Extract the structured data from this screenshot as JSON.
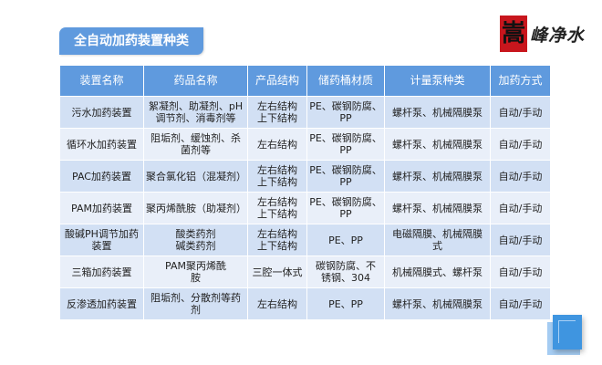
{
  "title": "全自动加药装置种类",
  "logo": {
    "seal": "嵩",
    "text": "峰净水"
  },
  "table": {
    "headers": [
      "装置名称",
      "药品名称",
      "产品结构",
      "储药桶材质",
      "计量泵种类",
      "加药方式"
    ],
    "rows": [
      [
        "污水加药装置",
        "絮凝剂、助凝剂、pH\n调节剂、消毒剂等",
        "左右结构\n上下结构",
        "PE、碳钢防腐、\nPP",
        "螺杆泵、机械隔膜泵",
        "自动/手动"
      ],
      [
        "循环水加药装置",
        "阻垢剂、缓蚀剂、杀\n菌剂等",
        "左右结构",
        "PE、碳钢防腐、\nPP",
        "螺杆泵、机械隔膜泵",
        "自动/手动"
      ],
      [
        "PAC加药装置",
        "聚合氯化铝（混凝剂）",
        "左右结构\n上下结构",
        "PE、碳钢防腐、\nPP",
        "螺杆泵、机械隔膜泵",
        "自动/手动"
      ],
      [
        "PAM加药装置",
        "聚丙烯酰胺（助凝剂）",
        "左右结构\n上下结构",
        "PE、碳钢防腐、\nPP",
        "螺杆泵、机械隔膜泵",
        "自动/手动"
      ],
      [
        "酸碱PH调节加药\n装置",
        "酸类药剂\n碱类药剂",
        "左右结构\n上下结构",
        "PE、PP",
        "电磁隔膜、机械隔膜\n式",
        "自动/手动"
      ],
      [
        "三箱加药装置",
        "PAM聚丙烯酰\n胺",
        "三腔一体式",
        "碳钢防腐、不\n锈钢、304",
        "机械隔膜式、螺杆泵",
        "自动/手动"
      ],
      [
        "反渗透加药装置",
        "阻垢剂、分散剂等药\n剂",
        "左右结构",
        "PE、PP",
        "螺杆泵、机械隔膜泵",
        "自动/手动"
      ]
    ]
  },
  "colors": {
    "header": "#5f9ade",
    "row_odd": "#d2e0f4",
    "row_even": "#e9eff9",
    "logo_seal": "#c8161d"
  }
}
